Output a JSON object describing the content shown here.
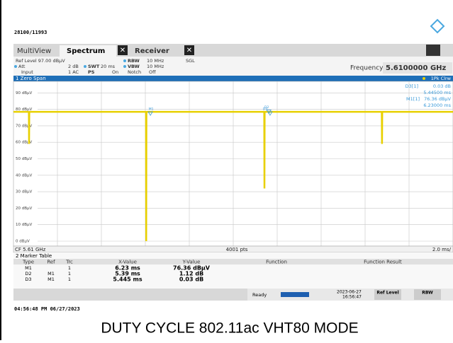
{
  "header": {
    "id": "28100/11993"
  },
  "tabs": {
    "multiview": "MultiView",
    "spectrum": "Spectrum",
    "receiver": "Receiver"
  },
  "settings": {
    "ref_level": "Ref Level 97.00 dBµV",
    "att": "Att",
    "att_val": "2 dB",
    "swt": "SWT",
    "swt_val": "20 ms",
    "rbw": "RBW",
    "rbw_val": "10 MHz",
    "vbw": "VBW",
    "vbw_val": "10 MHz",
    "sgl": "SGL",
    "input": "Input",
    "input_val": "1 AC",
    "ps": "PS",
    "ps_val": "On",
    "notch": "Notch",
    "notch_val": "Off",
    "frequency": "Frequency",
    "frequency_val": "5.6100000 GHz"
  },
  "window": {
    "title": "1 Zero Span",
    "trace_mode": "1Pk Clrw",
    "d3_label": "D3[1]",
    "d3_y": "0.03 dB",
    "d3_x": "5.44500 ms",
    "m1_label": "M1[1]",
    "m1_y": "76.36 dBµV",
    "m1_x": "6.23000 ms",
    "cf": "CF 5.61 GHz",
    "pts": "4001 pts",
    "div": "2.0 ms/"
  },
  "chart_data": {
    "type": "line",
    "x": [
      0,
      0.7,
      0.71,
      0.72,
      6.03,
      6.04,
      6.05,
      11.41,
      11.42,
      11.43,
      16.76,
      16.77,
      16.78,
      20
    ],
    "series": [
      {
        "name": "1Pk Clrw",
        "color": "#e8d000",
        "values": [
          78.5,
          78.5,
          59,
          78.5,
          78.5,
          0,
          78.5,
          78.5,
          32,
          78.5,
          78.5,
          59,
          78.5,
          78.5
        ]
      }
    ],
    "xlim": [
      0,
      20
    ],
    "xticks": [
      0,
      2,
      4,
      6,
      8,
      10,
      12,
      14,
      16,
      18,
      20
    ],
    "ylim": [
      -3,
      97
    ],
    "yticks": [
      {
        "value": 0,
        "label": "0 dBµV"
      },
      {
        "value": 10,
        "label": "10 dBµV"
      },
      {
        "value": 20,
        "label": "20 dBµV"
      },
      {
        "value": 30,
        "label": "30 dBµV"
      },
      {
        "value": 40,
        "label": "40 dBµV"
      },
      {
        "value": 50,
        "label": "50 dBµV"
      },
      {
        "value": 60,
        "label": "60 dBµV"
      },
      {
        "value": 70,
        "label": "70 dBµV"
      },
      {
        "value": 80,
        "label": "80 dBµV"
      },
      {
        "value": 90,
        "label": "90 dBµV"
      }
    ],
    "grid": true,
    "markers": [
      {
        "name": "M1",
        "x": 6.23,
        "y": 76.36
      },
      {
        "name": "D2",
        "x": 11.62,
        "y": 77.48
      },
      {
        "name": "D3",
        "x": 11.675,
        "y": 76.39
      }
    ]
  },
  "marker_table": {
    "title": "2 Marker Table",
    "columns": [
      "Type",
      "Ref",
      "Trc",
      "X-Value",
      "Y-Value",
      "Function",
      "Function Result"
    ],
    "rows": [
      {
        "type": "M1",
        "trc": "1",
        "x": "6.23 ms",
        "y": "76.36 dBµV"
      },
      {
        "type": "D2",
        "ref": "M1",
        "trc": "1",
        "x": "5.39 ms",
        "y": "1.12 dB"
      },
      {
        "type": "D3",
        "ref": "M1",
        "trc": "1",
        "x": "5.445 ms",
        "y": "0.03 dB"
      }
    ]
  },
  "status": {
    "ready": "Ready",
    "date": "2023-06-27",
    "time": "16:56:47",
    "ref_level": "Ref Level",
    "rbw": "RBW"
  },
  "footer": {
    "timestamp": "04:56:48 PM  06/27/2023",
    "caption": "DUTY CYCLE 802.11ac VHT80 MODE"
  }
}
